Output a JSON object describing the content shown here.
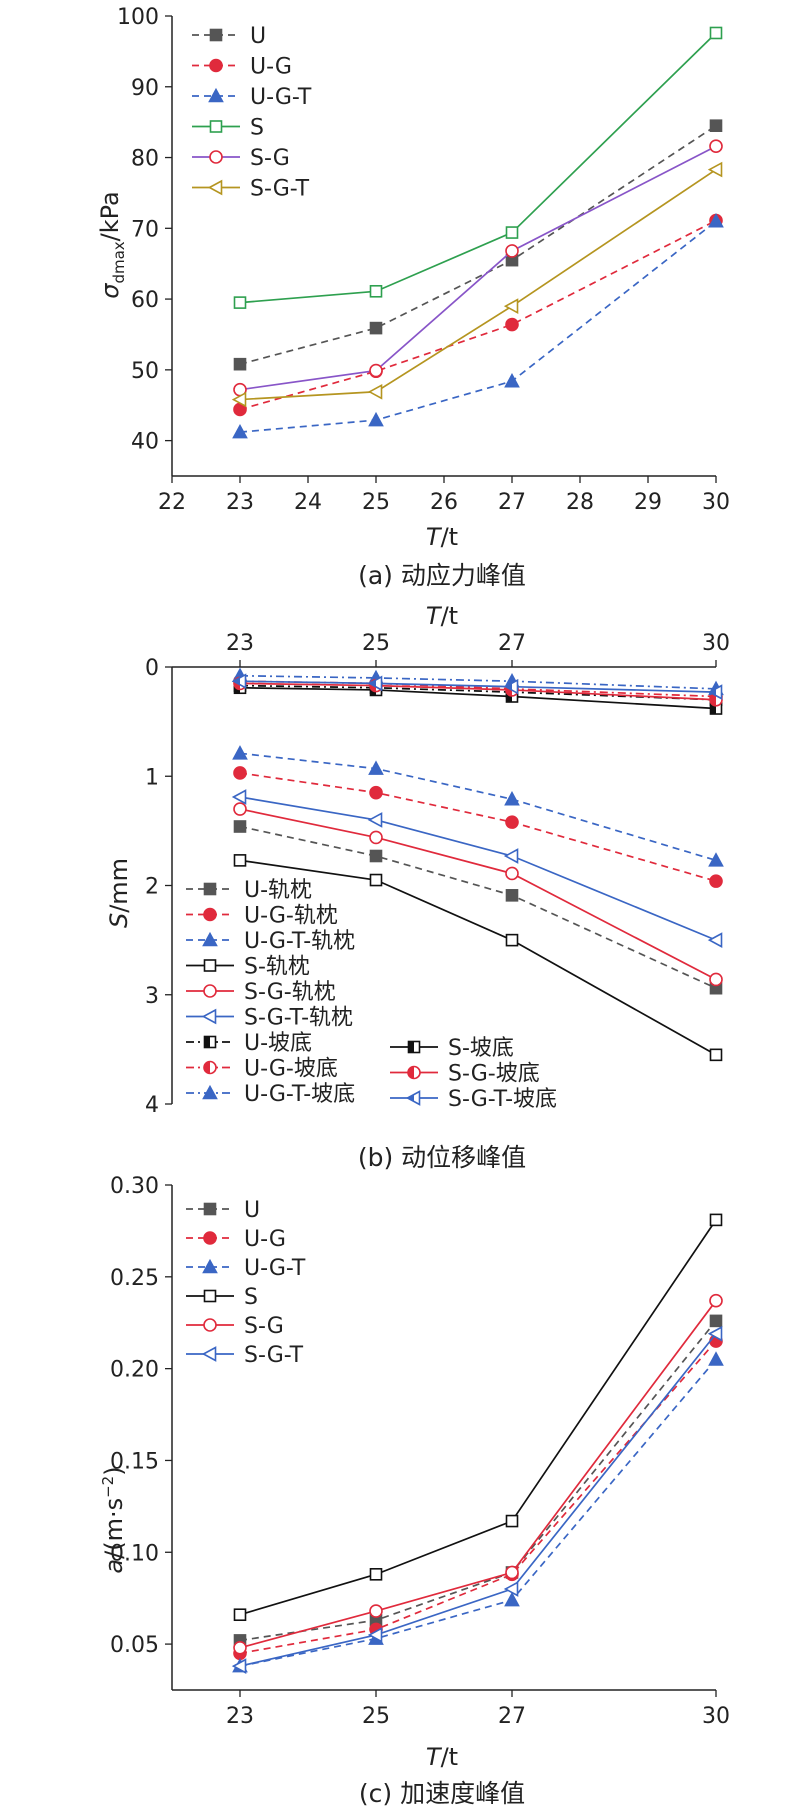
{
  "chart_data": [
    {
      "id": "a",
      "type": "line",
      "caption": "(a) 动应力峰值",
      "xlabel": "T/t",
      "ylabel": "σdmax/kPa",
      "xlim": [
        22,
        30
      ],
      "ylim": [
        35,
        100
      ],
      "xticks": [
        22,
        23,
        24,
        25,
        26,
        27,
        28,
        29,
        30
      ],
      "yticks": [
        40,
        50,
        60,
        70,
        80,
        90,
        100
      ],
      "legend_position": "top-left",
      "x": [
        23,
        25,
        27,
        30
      ],
      "series": [
        {
          "name": "U",
          "values": [
            50.8,
            55.9,
            65.5,
            84.5
          ],
          "color": "#555555",
          "dash": true,
          "marker": "square-filled"
        },
        {
          "name": "U-G",
          "values": [
            44.4,
            49.8,
            56.4,
            71.1
          ],
          "color": "#e02a3c",
          "dash": true,
          "marker": "circle-filled"
        },
        {
          "name": "U-G-T",
          "values": [
            41.2,
            42.9,
            48.4,
            71.0
          ],
          "color": "#3a66c4",
          "dash": true,
          "marker": "triangle-filled"
        },
        {
          "name": "S",
          "values": [
            59.5,
            61.1,
            69.4,
            97.6
          ],
          "color": "#2ea04f",
          "dash": false,
          "marker": "square-open"
        },
        {
          "name": "S-G",
          "values": [
            47.2,
            49.9,
            66.8,
            81.6
          ],
          "color": "#8855c8",
          "dash": false,
          "marker": "circle-open",
          "marker_color": "#e02a3c"
        },
        {
          "name": "S-G-T",
          "values": [
            45.8,
            46.9,
            59.0,
            78.3
          ],
          "color": "#b59520",
          "dash": false,
          "marker": "triangle-left-open"
        }
      ]
    },
    {
      "id": "b",
      "type": "line",
      "caption": "(b) 动位移峰值",
      "xlabel": "T/t",
      "ylabel": "S/mm",
      "x_axis_position": "top",
      "y_inverted": true,
      "xlim": [
        22,
        30
      ],
      "ylim": [
        0,
        4
      ],
      "xticks": [
        23,
        25,
        27,
        30
      ],
      "yticks": [
        0,
        1,
        2,
        3,
        4
      ],
      "legend_position": "bottom-left",
      "x": [
        23,
        25,
        27,
        30
      ],
      "series": [
        {
          "name": "U-轨枕",
          "values": [
            1.46,
            1.73,
            2.09,
            2.94
          ],
          "color": "#555555",
          "dash": "dash",
          "marker": "square-filled"
        },
        {
          "name": "U-G-轨枕",
          "values": [
            0.97,
            1.15,
            1.42,
            1.96
          ],
          "color": "#e02a3c",
          "dash": "dash",
          "marker": "circle-filled"
        },
        {
          "name": "U-G-T-轨枕",
          "values": [
            0.79,
            0.93,
            1.21,
            1.77
          ],
          "color": "#3a66c4",
          "dash": "dash",
          "marker": "triangle-filled"
        },
        {
          "name": "S-轨枕",
          "values": [
            1.77,
            1.95,
            2.5,
            3.55
          ],
          "color": "#111111",
          "dash": "solid",
          "marker": "square-open"
        },
        {
          "name": "S-G-轨枕",
          "values": [
            1.3,
            1.56,
            1.89,
            2.86
          ],
          "color": "#e02a3c",
          "dash": "solid",
          "marker": "circle-open"
        },
        {
          "name": "S-G-T-轨枕",
          "values": [
            1.19,
            1.4,
            1.73,
            2.5
          ],
          "color": "#3a66c4",
          "dash": "solid",
          "marker": "triangle-left-open"
        },
        {
          "name": "U-坡底",
          "values": [
            0.17,
            0.19,
            0.23,
            0.3
          ],
          "color": "#111111",
          "dash": "dashdot",
          "marker": "square-half"
        },
        {
          "name": "U-G-坡底",
          "values": [
            0.13,
            0.15,
            0.2,
            0.27
          ],
          "color": "#e02a3c",
          "dash": "dashdot",
          "marker": "circle-half"
        },
        {
          "name": "U-G-T-坡底",
          "values": [
            0.08,
            0.1,
            0.13,
            0.2
          ],
          "color": "#3a66c4",
          "dash": "dashdot",
          "marker": "triangle-filled"
        },
        {
          "name": "S-坡底",
          "values": [
            0.19,
            0.21,
            0.27,
            0.38
          ],
          "color": "#111111",
          "dash": "solid",
          "marker": "square-half"
        },
        {
          "name": "S-G-坡底",
          "values": [
            0.15,
            0.17,
            0.21,
            0.3
          ],
          "color": "#e02a3c",
          "dash": "solid",
          "marker": "circle-half"
        },
        {
          "name": "S-G-T-坡底",
          "values": [
            0.13,
            0.15,
            0.18,
            0.23
          ],
          "color": "#3a66c4",
          "dash": "solid",
          "marker": "triangle-left-half"
        }
      ]
    },
    {
      "id": "c",
      "type": "line",
      "caption": "(c) 加速度峰值",
      "xlabel": "T/t",
      "ylabel": "a/(m·s⁻²)",
      "xlim": [
        22,
        30
      ],
      "ylim": [
        0.025,
        0.3
      ],
      "xticks": [
        23,
        25,
        27,
        30
      ],
      "yticks": [
        0.05,
        0.1,
        0.15,
        0.2,
        0.25,
        0.3
      ],
      "yticklabels": [
        "0.05",
        "0.10",
        "0.15",
        "0.20",
        "0.25",
        "0.30"
      ],
      "legend_position": "top-left",
      "x": [
        23,
        25,
        27,
        30
      ],
      "series": [
        {
          "name": "U",
          "values": [
            0.052,
            0.063,
            0.089,
            0.226
          ],
          "color": "#555555",
          "dash": true,
          "marker": "square-filled"
        },
        {
          "name": "U-G",
          "values": [
            0.045,
            0.058,
            0.088,
            0.215
          ],
          "color": "#e02a3c",
          "dash": true,
          "marker": "circle-filled"
        },
        {
          "name": "U-G-T",
          "values": [
            0.038,
            0.053,
            0.074,
            0.205
          ],
          "color": "#3a66c4",
          "dash": true,
          "marker": "triangle-filled"
        },
        {
          "name": "S",
          "values": [
            0.066,
            0.088,
            0.117,
            0.281
          ],
          "color": "#111111",
          "dash": false,
          "marker": "square-open"
        },
        {
          "name": "S-G",
          "values": [
            0.048,
            0.068,
            0.089,
            0.237
          ],
          "color": "#e02a3c",
          "dash": false,
          "marker": "circle-open"
        },
        {
          "name": "S-G-T",
          "values": [
            0.038,
            0.055,
            0.08,
            0.219
          ],
          "color": "#3a66c4",
          "dash": false,
          "marker": "triangle-left-open"
        }
      ]
    }
  ]
}
